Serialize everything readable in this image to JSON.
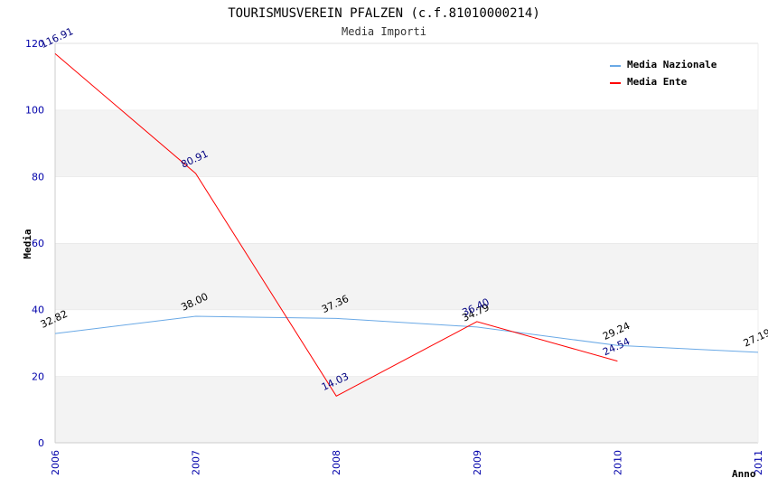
{
  "chart_data": {
    "type": "line",
    "title": "TOURISMUSVEREIN PFALZEN (c.f.81010000214)",
    "subtitle": "Media Importi",
    "xlabel": "Anno",
    "ylabel": "Media",
    "ylim": [
      0,
      120
    ],
    "yticks": [
      0,
      20,
      40,
      60,
      80,
      100,
      120
    ],
    "categories": [
      "2006",
      "2007",
      "2008",
      "2009",
      "2010",
      "2011"
    ],
    "grid": "horizontal bands",
    "legend_position": "top-right",
    "series": [
      {
        "name": "Media Nazionale",
        "color": "#6aa9e6",
        "label_color": "#000000",
        "values": [
          32.82,
          38.0,
          37.36,
          34.79,
          29.24,
          27.19
        ],
        "labels": [
          "32.82",
          "38.00",
          "37.36",
          "34.79",
          "29.24",
          "27.19"
        ]
      },
      {
        "name": "Media Ente",
        "color": "#ff0000",
        "label_color": "#000080",
        "values": [
          116.91,
          80.91,
          14.03,
          36.4,
          24.54,
          null
        ],
        "labels": [
          "116.91",
          "80.91",
          "14.03",
          "36.40",
          "24.54",
          null
        ]
      }
    ]
  }
}
